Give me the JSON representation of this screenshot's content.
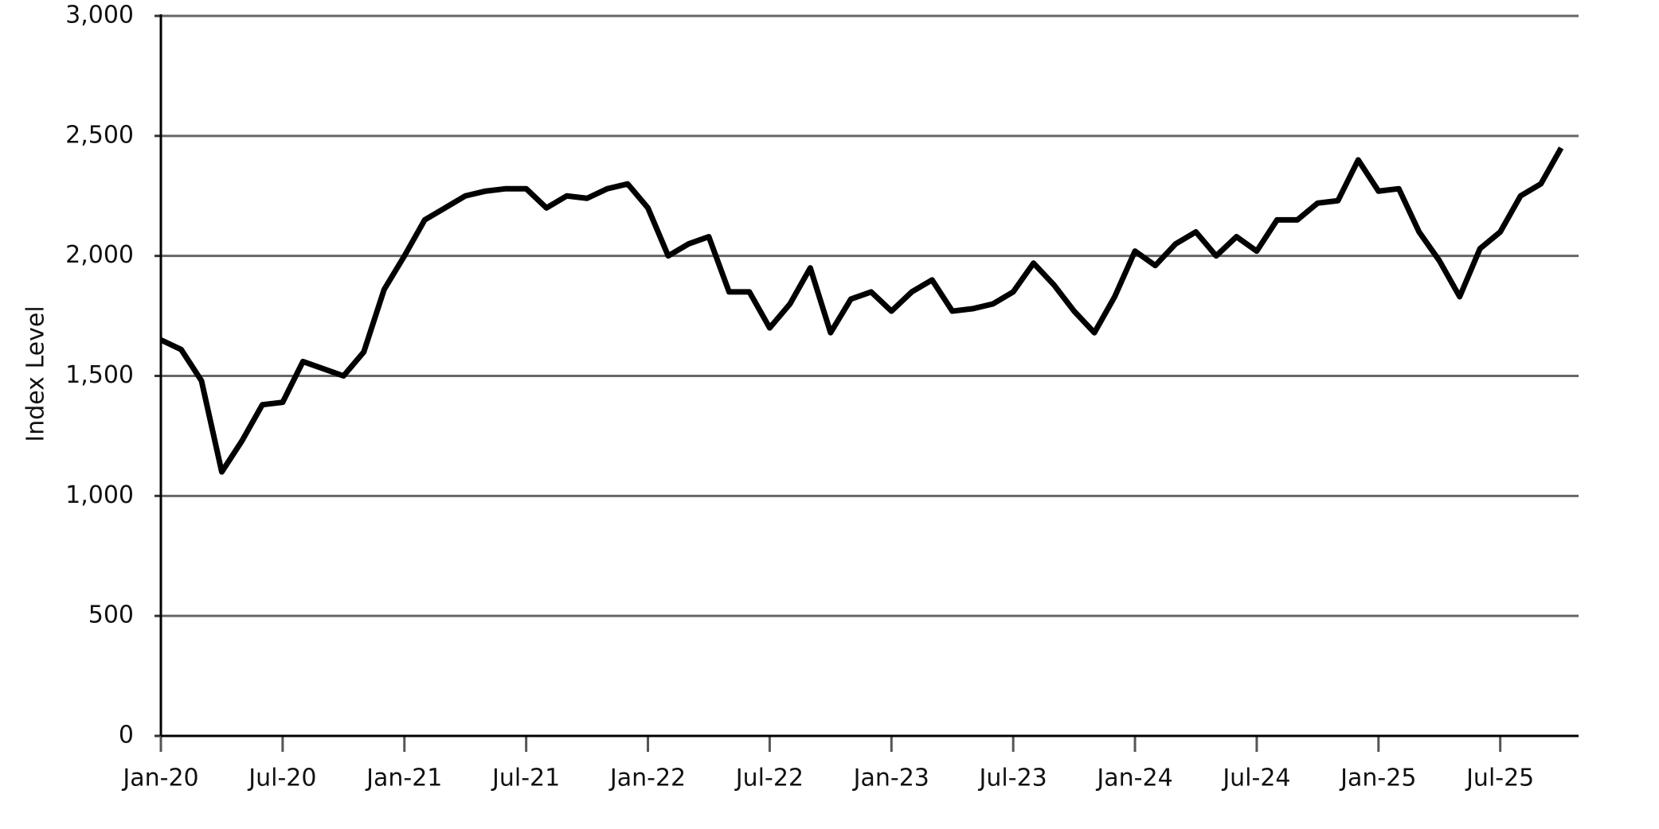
{
  "chart_data": {
    "type": "line",
    "y_label": "Index Level",
    "categories": [
      "Jan-20",
      null,
      null,
      null,
      null,
      null,
      "Jul-20",
      null,
      null,
      null,
      null,
      null,
      "Jan-21",
      null,
      null,
      null,
      null,
      null,
      "Jul-21",
      null,
      null,
      null,
      null,
      null,
      "Jan-22",
      null,
      null,
      null,
      null,
      null,
      "Jul-22",
      null,
      null,
      null,
      null,
      null,
      "Jan-23",
      null,
      null,
      null,
      null,
      null,
      "Jul-23",
      null,
      null,
      null,
      null,
      null,
      "Jan-24",
      null,
      null,
      null,
      null,
      null,
      "Jul-24",
      null,
      null,
      null,
      null,
      null,
      "Jan-25",
      null,
      null,
      null,
      null,
      null,
      "Jul-25",
      null,
      null,
      null
    ],
    "series": [
      {
        "color": "#000000",
        "values": [
          1650,
          1610,
          1480,
          1100,
          1230,
          1380,
          1390,
          1560,
          1530,
          1500,
          1600,
          1860,
          2000,
          2150,
          2200,
          2250,
          2270,
          2280,
          2280,
          2200,
          2250,
          2240,
          2280,
          2300,
          2200,
          2000,
          2050,
          2080,
          1850,
          1850,
          1700,
          1800,
          1950,
          1680,
          1820,
          1850,
          1770,
          1850,
          1900,
          1770,
          1780,
          1800,
          1850,
          1970,
          1880,
          1770,
          1680,
          1830,
          2020,
          1960,
          2050,
          2100,
          2000,
          2080,
          2020,
          2150,
          2150,
          2220,
          2230,
          2400,
          2270,
          2280,
          2100,
          1980,
          1830,
          2030,
          2100,
          2250,
          2300,
          2450
        ]
      }
    ],
    "ylim": [
      0,
      3000
    ],
    "yticks": [
      0,
      500,
      {
        "value": 1000,
        "label": "1,000"
      },
      {
        "value": 1500,
        "label": "1,500"
      },
      {
        "value": 2000,
        "label": "2,000"
      },
      {
        "value": 2500,
        "label": "2,500"
      },
      {
        "value": 3000,
        "label": "3,000"
      }
    ],
    "grid": true
  }
}
